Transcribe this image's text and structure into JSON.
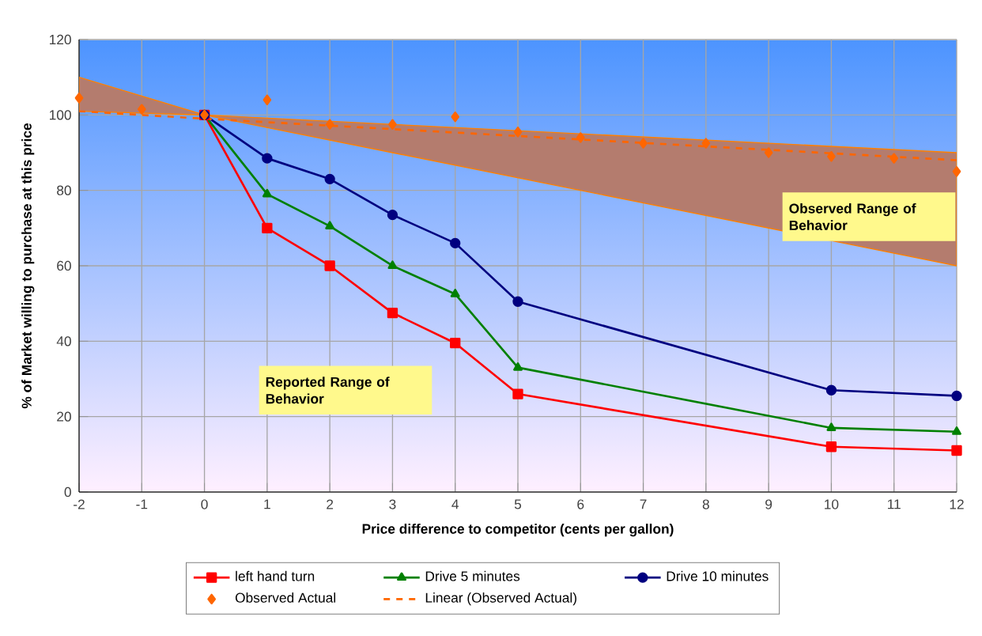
{
  "chart_data": {
    "type": "line",
    "xlabel": "Price difference to competitor (cents per gallon)",
    "ylabel": "% of Market willing to purchase at this price",
    "xlim": [
      -2,
      12
    ],
    "xticks": [
      -2,
      -1,
      0,
      1,
      2,
      3,
      4,
      5,
      6,
      7,
      8,
      9,
      10,
      11,
      12
    ],
    "ylim": [
      0,
      120
    ],
    "yticks": [
      0,
      20,
      40,
      60,
      80,
      100,
      120
    ],
    "grid": true,
    "legend": "bottom",
    "annotations": [
      "Reported Range of Behavior",
      "Observed Range of Behavior"
    ],
    "series": [
      {
        "name": "left hand turn",
        "color": "#ff0000",
        "marker": "square",
        "x": [
          0,
          1,
          2,
          3,
          4,
          5,
          10,
          12
        ],
        "values": [
          100,
          70,
          60,
          47.5,
          39.5,
          26,
          12,
          11
        ]
      },
      {
        "name": "Drive 5 minutes",
        "color": "#008000",
        "marker": "triangle",
        "x": [
          0,
          1,
          2,
          3,
          4,
          5,
          10,
          12
        ],
        "values": [
          100,
          79,
          70.5,
          60,
          52.5,
          33,
          17,
          16
        ]
      },
      {
        "name": "Drive 10 minutes",
        "color": "#000080",
        "marker": "circle",
        "x": [
          0,
          1,
          2,
          3,
          4,
          5,
          10,
          12
        ],
        "values": [
          100,
          88.5,
          83,
          73.5,
          66,
          50.5,
          27,
          25.5
        ]
      },
      {
        "name": "Observed Actual",
        "type": "scatter",
        "color": "#ff6600",
        "marker": "diamond",
        "x": [
          -2,
          -1,
          0,
          1,
          2,
          3,
          4,
          5,
          6,
          7,
          8,
          9,
          10,
          11,
          12
        ],
        "values": [
          104.5,
          101.5,
          100,
          104,
          97.5,
          97.5,
          99.5,
          95.5,
          94,
          92.5,
          92.5,
          90,
          89,
          88.5,
          85
        ]
      },
      {
        "name": "Linear (Observed Actual)",
        "color": "#ff6600",
        "marker": "none",
        "line_style": "dashed",
        "x": [
          -2,
          0,
          12
        ],
        "values": [
          101,
          99,
          88
        ],
        "lower": [
          101,
          100,
          60
        ],
        "upper": [
          110,
          100,
          90
        ]
      }
    ]
  }
}
